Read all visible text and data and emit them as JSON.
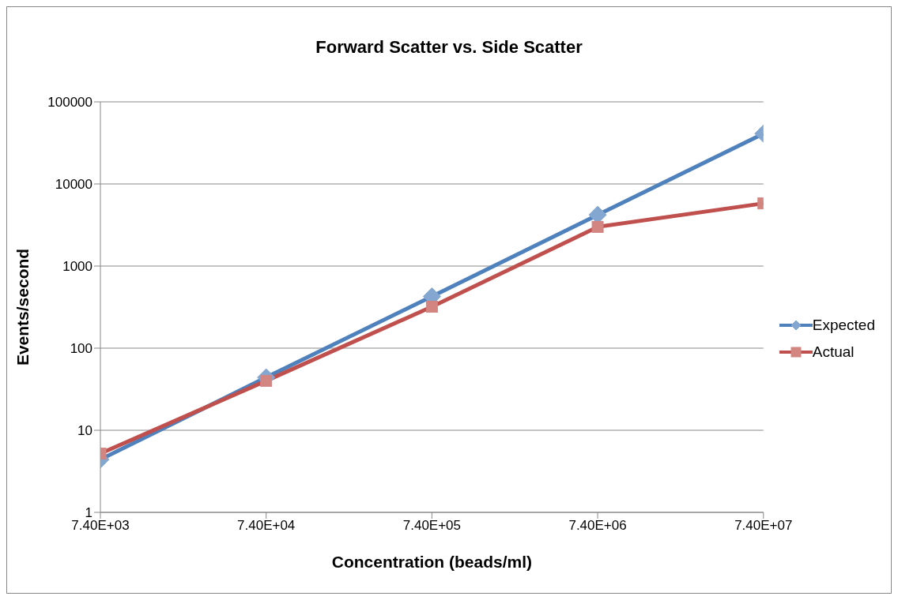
{
  "chart_data": {
    "type": "line",
    "title": "Forward Scatter vs. Side Scatter",
    "xlabel": "Concentration (beads/ml)",
    "ylabel": "Events/second",
    "categories": [
      "7.40E+03",
      "7.40E+04",
      "7.40E+05",
      "7.40E+06",
      "7.40E+07"
    ],
    "series": [
      {
        "name": "Expected",
        "color": "#4f81bd",
        "marker": "diamond",
        "values": [
          4.4,
          44,
          426,
          4200,
          41000
        ]
      },
      {
        "name": "Actual",
        "color": "#c0504d",
        "marker": "square",
        "values": [
          5.2,
          40,
          320,
          3000,
          5800
        ]
      }
    ],
    "log": "y",
    "ylim": [
      1,
      100000
    ],
    "yticks": [
      1,
      10,
      100,
      1000,
      10000,
      100000
    ],
    "grid": "y",
    "legend": "right",
    "line_style": "solid"
  }
}
